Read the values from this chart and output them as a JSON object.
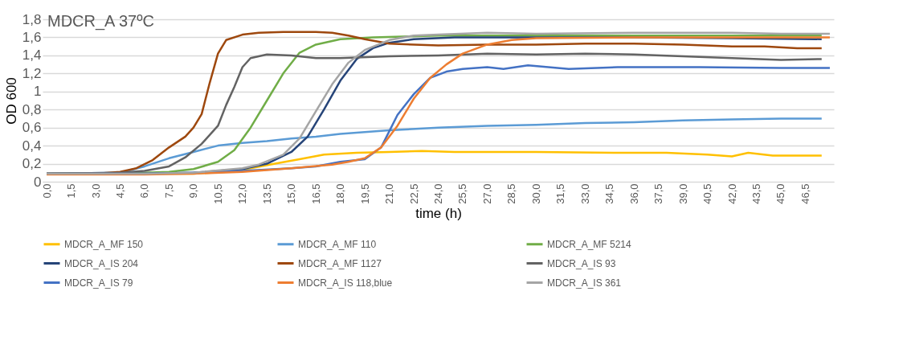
{
  "chart_data": {
    "type": "line",
    "title": "MDCR_A 37ºC",
    "xlabel": "time (h)",
    "ylabel": "OD 600",
    "xlim": [
      -0.25,
      48.25
    ],
    "xticks": [
      {
        "value": 0,
        "label": "0,0"
      },
      {
        "value": 1.5,
        "label": "1,5"
      },
      {
        "value": 3,
        "label": "3,0"
      },
      {
        "value": 4.5,
        "label": "4,5"
      },
      {
        "value": 6,
        "label": "6,0"
      },
      {
        "value": 7.5,
        "label": "7,5"
      },
      {
        "value": 9,
        "label": "9,0"
      },
      {
        "value": 10.5,
        "label": "10,5"
      },
      {
        "value": 12,
        "label": "12,0"
      },
      {
        "value": 13.5,
        "label": "13,5"
      },
      {
        "value": 15,
        "label": "15,0"
      },
      {
        "value": 16.5,
        "label": "16,5"
      },
      {
        "value": 18,
        "label": "18,0"
      },
      {
        "value": 19.5,
        "label": "19,5"
      },
      {
        "value": 21,
        "label": "21,0"
      },
      {
        "value": 22.5,
        "label": "22,5"
      },
      {
        "value": 24,
        "label": "24,0"
      },
      {
        "value": 25.5,
        "label": "25,5"
      },
      {
        "value": 27,
        "label": "27,0"
      },
      {
        "value": 28.5,
        "label": "28,5"
      },
      {
        "value": 30,
        "label": "30,0"
      },
      {
        "value": 31.5,
        "label": "31,5"
      },
      {
        "value": 33,
        "label": "33,0"
      },
      {
        "value": 34.5,
        "label": "34,5"
      },
      {
        "value": 36,
        "label": "36,0"
      },
      {
        "value": 37.5,
        "label": "37,5"
      },
      {
        "value": 39,
        "label": "39,0"
      },
      {
        "value": 40.5,
        "label": "40,5"
      },
      {
        "value": 42,
        "label": "42,0"
      },
      {
        "value": 43.5,
        "label": "43,5"
      },
      {
        "value": 45,
        "label": "45,0"
      },
      {
        "value": 46.5,
        "label": "46,5"
      }
    ],
    "ylim": [
      0,
      1.8
    ],
    "yticks": [
      0,
      {
        "value": 0.2,
        "label": "0,2"
      },
      {
        "value": 0.4,
        "label": "0,4"
      },
      {
        "value": 0.6,
        "label": "0,6"
      },
      {
        "value": 0.8,
        "label": "0,8"
      },
      1,
      {
        "value": 1.2,
        "label": "1,2"
      },
      {
        "value": 1.4,
        "label": "1,4"
      },
      {
        "value": 1.6,
        "label": "1,6"
      },
      {
        "value": 1.8,
        "label": "1,8"
      }
    ],
    "grid": "y",
    "legend": "bottom",
    "marker": "none",
    "line_style": "solid",
    "series": [
      {
        "name": "MDCR_A_MF 150",
        "color": "#ffc000",
        "x": [
          0,
          9,
          11,
          12.5,
          14,
          15.5,
          17,
          19,
          21,
          23,
          25,
          30,
          35,
          38,
          40.5,
          42,
          43,
          44.5,
          46,
          47.5
        ],
        "values": [
          0.09,
          0.09,
          0.11,
          0.15,
          0.2,
          0.25,
          0.3,
          0.32,
          0.33,
          0.34,
          0.33,
          0.33,
          0.32,
          0.32,
          0.3,
          0.28,
          0.32,
          0.29,
          0.29,
          0.29
        ]
      },
      {
        "name": "MDCR_A_MF 110",
        "color": "#5b9bd5",
        "x": [
          0,
          4.5,
          6,
          7.5,
          9,
          10.5,
          12,
          13.5,
          15,
          16.5,
          18,
          21,
          24,
          27,
          30,
          33,
          36,
          39,
          42,
          45,
          47.5
        ],
        "values": [
          0.09,
          0.1,
          0.17,
          0.26,
          0.33,
          0.4,
          0.43,
          0.45,
          0.48,
          0.5,
          0.53,
          0.57,
          0.6,
          0.62,
          0.63,
          0.65,
          0.66,
          0.68,
          0.69,
          0.7,
          0.7
        ]
      },
      {
        "name": "MDCR_A_MF 5214",
        "color": "#70ad47",
        "x": [
          0,
          6,
          7.5,
          9,
          10.5,
          11.5,
          12.5,
          13.5,
          14.5,
          15.5,
          16.5,
          18,
          20,
          24,
          30,
          36,
          42,
          47.5
        ],
        "values": [
          0.09,
          0.1,
          0.11,
          0.14,
          0.22,
          0.35,
          0.6,
          0.9,
          1.2,
          1.43,
          1.52,
          1.58,
          1.6,
          1.62,
          1.62,
          1.62,
          1.62,
          1.62
        ]
      },
      {
        "name": "MDCR_A_IS 204",
        "color": "#264478",
        "x": [
          0,
          6,
          9,
          12,
          13.5,
          15,
          16,
          17,
          18,
          19,
          20,
          21,
          22.5,
          25,
          30,
          36,
          42,
          47.5
        ],
        "values": [
          0.09,
          0.09,
          0.1,
          0.14,
          0.2,
          0.33,
          0.5,
          0.8,
          1.12,
          1.36,
          1.48,
          1.54,
          1.58,
          1.6,
          1.6,
          1.6,
          1.59,
          1.58
        ]
      },
      {
        "name": "MDCR_A_MF 1127",
        "color": "#9e480e",
        "x": [
          0,
          3,
          4.5,
          5.5,
          6.5,
          7.5,
          8.5,
          9,
          9.5,
          10,
          10.5,
          11,
          12,
          13,
          14.5,
          15.5,
          16.5,
          17.5,
          18.5,
          19.5,
          21,
          24,
          27,
          30,
          33,
          36,
          39,
          42,
          44,
          46,
          47.5
        ],
        "values": [
          0.09,
          0.09,
          0.11,
          0.15,
          0.24,
          0.38,
          0.5,
          0.6,
          0.75,
          1.1,
          1.42,
          1.57,
          1.63,
          1.65,
          1.66,
          1.66,
          1.66,
          1.65,
          1.62,
          1.58,
          1.53,
          1.51,
          1.52,
          1.52,
          1.53,
          1.53,
          1.52,
          1.5,
          1.5,
          1.48,
          1.48
        ]
      },
      {
        "name": "MDCR_A_IS 93",
        "color": "#636363",
        "x": [
          0,
          4.5,
          6,
          7.5,
          8.5,
          9.5,
          10.5,
          11,
          11.5,
          12,
          12.5,
          13.5,
          15,
          16.5,
          18,
          21,
          24,
          27,
          30,
          33,
          36,
          39,
          42,
          45,
          47.5
        ],
        "values": [
          0.09,
          0.1,
          0.12,
          0.17,
          0.27,
          0.42,
          0.62,
          0.85,
          1.05,
          1.27,
          1.37,
          1.41,
          1.4,
          1.37,
          1.37,
          1.39,
          1.4,
          1.42,
          1.41,
          1.42,
          1.41,
          1.39,
          1.37,
          1.35,
          1.36
        ]
      },
      {
        "name": "MDCR_A_IS 79",
        "color": "#4472c4",
        "x": [
          0,
          6,
          9,
          12,
          15,
          16.5,
          18,
          19.5,
          20.5,
          21.5,
          22.5,
          23.5,
          24.5,
          25.5,
          27,
          28,
          29.5,
          32,
          35,
          40,
          45,
          48
        ],
        "values": [
          0.09,
          0.09,
          0.1,
          0.12,
          0.15,
          0.17,
          0.22,
          0.25,
          0.38,
          0.74,
          0.97,
          1.15,
          1.22,
          1.25,
          1.27,
          1.25,
          1.29,
          1.25,
          1.27,
          1.27,
          1.26,
          1.26
        ]
      },
      {
        "name": "MDCR_A_IS 118,blue",
        "color": "#ed7d31",
        "x": [
          0,
          6,
          9,
          12,
          15,
          17.5,
          18.5,
          19.5,
          20.5,
          21.5,
          22.5,
          23.5,
          24.5,
          25.5,
          27,
          28.5,
          30,
          36,
          42,
          48
        ],
        "values": [
          0.08,
          0.08,
          0.09,
          0.11,
          0.15,
          0.19,
          0.22,
          0.26,
          0.38,
          0.62,
          0.92,
          1.15,
          1.3,
          1.42,
          1.52,
          1.57,
          1.59,
          1.6,
          1.6,
          1.6
        ]
      },
      {
        "name": "MDCR_A_IS 361",
        "color": "#a5a5a5",
        "x": [
          0,
          6,
          9,
          12,
          13,
          14.5,
          15.5,
          16.5,
          17.5,
          18.5,
          19.5,
          21,
          22.5,
          24,
          27,
          30,
          36,
          42,
          45,
          48
        ],
        "values": [
          0.09,
          0.09,
          0.1,
          0.15,
          0.19,
          0.3,
          0.48,
          0.78,
          1.08,
          1.32,
          1.46,
          1.57,
          1.62,
          1.63,
          1.65,
          1.64,
          1.65,
          1.65,
          1.64,
          1.64
        ]
      }
    ]
  }
}
